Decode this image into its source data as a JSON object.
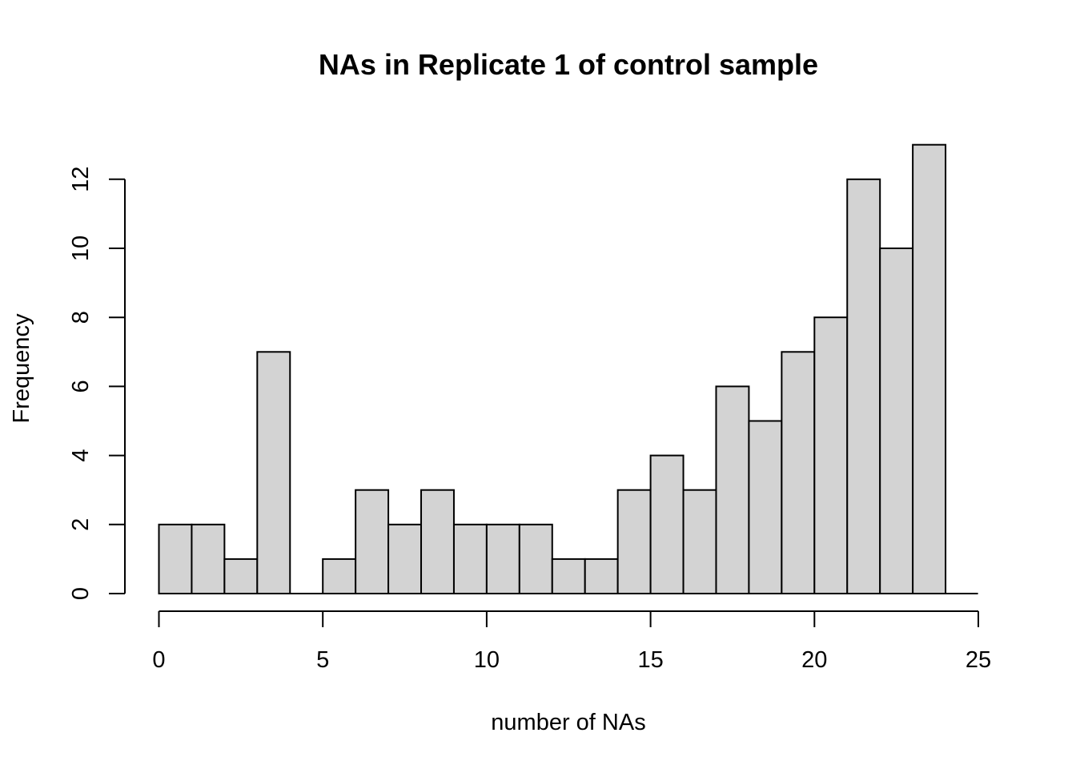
{
  "chart_data": {
    "type": "bar",
    "title": "NAs in Replicate 1 of control sample",
    "xlabel": "number of NAs",
    "ylabel": "Frequency",
    "bin_width": 1,
    "bin_starts": [
      0,
      1,
      2,
      3,
      4,
      5,
      6,
      7,
      8,
      9,
      10,
      11,
      12,
      13,
      14,
      15,
      16,
      17,
      18,
      19,
      20,
      21,
      22,
      23
    ],
    "values": [
      2,
      2,
      1,
      7,
      0,
      1,
      3,
      2,
      3,
      2,
      2,
      2,
      1,
      1,
      3,
      4,
      3,
      6,
      5,
      7,
      8,
      12,
      10,
      13
    ],
    "xlim": [
      0,
      25
    ],
    "ylim": [
      0,
      12
    ],
    "x_ticks": [
      0,
      5,
      10,
      15,
      20,
      25
    ],
    "y_ticks": [
      0,
      2,
      4,
      6,
      8,
      10,
      12
    ],
    "grid": false,
    "colors": {
      "bar_fill": "#d3d3d3",
      "bar_stroke": "#000000"
    }
  }
}
